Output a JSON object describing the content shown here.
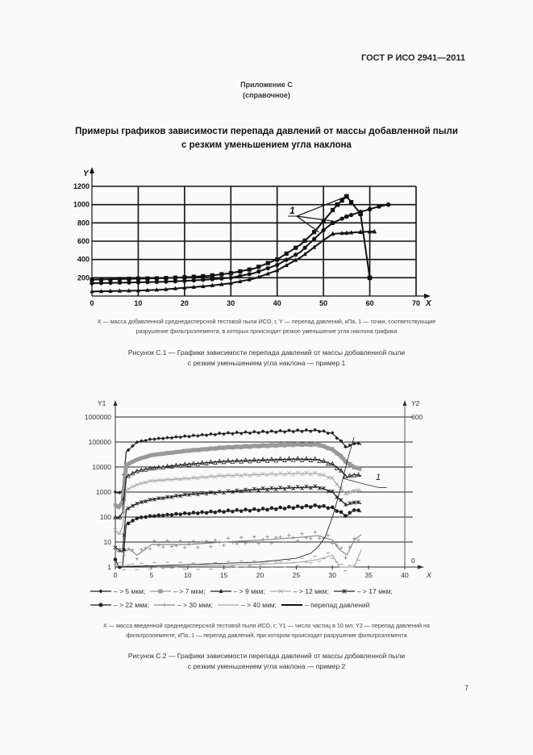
{
  "header": {
    "doc_code": "ГОСТ Р ИСО 2941—2011"
  },
  "appendix": {
    "title": "Приложение С",
    "subtitle": "(справочное)"
  },
  "main_title": {
    "line1": "Примеры графиков зависимости перепада давлений от массы добавленной пыли",
    "line2": "с резким уменьшением угла наклона"
  },
  "figure1": {
    "legend_line1": "X — масса добавленной среднедисперсной тестовой пыли ИСО, г, Y — перепад давлений, кПа, 1 — точки, соответствующие",
    "legend_line2": "разрушение фильтроэлемента, в которых происходит резкое уменьшение угла наклона графика",
    "caption_line1": "Рисунок С.1 — Графики зависимости перепада давлений от массы добавленной пыли",
    "caption_line2": "с резким уменьшением угла наклона — пример 1"
  },
  "figure2": {
    "legend_items": [
      {
        "label": "– > 5 мкм;",
        "marker": "diamond",
        "color": "#222222"
      },
      {
        "label": "– > 7 мкм;",
        "marker": "square",
        "color": "#999999"
      },
      {
        "label": "– > 9 мкм;",
        "marker": "triangle",
        "color": "#222222"
      },
      {
        "label": "– > 12 мкм;",
        "marker": "x",
        "color": "#aaaaaa"
      },
      {
        "label": "– > 17 мкм;",
        "marker": "star",
        "color": "#222222"
      },
      {
        "label": "– > 22 мкм;",
        "marker": "circle",
        "color": "#222222"
      },
      {
        "label": "– > 30 мкм;",
        "marker": "plus",
        "color": "#888888"
      },
      {
        "label": "– > 40 мкм;",
        "marker": "dash",
        "color": "#aaaaaa"
      },
      {
        "label": "– перепад давлений",
        "marker": "line",
        "color": "#111111"
      }
    ],
    "legend_line1": "X — масса введенной среднедисперсной тестовой пыли ИСО, г; Y1 — число частиц в 10 мл; Y2 — перепад давлений на",
    "legend_line2": "фильтроэлементе, кПа; 1 — перепад давлений, при котором происходит разрушение фильтроэлемента",
    "caption_line1": "Рисунок С.2 — Графики зависимости перепада давлений от массы добавленной пыли",
    "caption_line2": "с резким уменьшением угла наклона — пример 2"
  },
  "page_number": "7",
  "chart_data": [
    {
      "type": "line",
      "title": "Рисунок С.1",
      "xlabel": "X",
      "ylabel": "Y",
      "xlim": [
        0,
        70
      ],
      "ylim": [
        0,
        1200
      ],
      "x_ticks": [
        0,
        10,
        20,
        30,
        40,
        50,
        60,
        70
      ],
      "y_ticks": [
        200,
        400,
        600,
        800,
        1000,
        1200
      ],
      "grid": true,
      "annotation": "1",
      "series": [
        {
          "name": "square-marker curve",
          "marker": "square",
          "x": [
            0,
            5,
            10,
            15,
            20,
            25,
            30,
            35,
            40,
            45,
            48,
            50,
            53,
            55,
            58,
            60
          ],
          "y": [
            180,
            185,
            190,
            195,
            205,
            220,
            250,
            300,
            400,
            560,
            700,
            820,
            1000,
            1090,
            900,
            200
          ]
        },
        {
          "name": "circle-marker curve",
          "marker": "circle",
          "x": [
            0,
            5,
            10,
            15,
            20,
            25,
            30,
            35,
            40,
            45,
            50,
            52,
            55,
            58,
            60,
            62,
            64
          ],
          "y": [
            140,
            145,
            150,
            155,
            165,
            180,
            200,
            250,
            340,
            480,
            720,
            800,
            870,
            920,
            950,
            980,
            1000
          ]
        },
        {
          "name": "triangle-marker curve",
          "marker": "triangle",
          "x": [
            0,
            5,
            10,
            15,
            20,
            25,
            30,
            35,
            40,
            45,
            50,
            52,
            55,
            58,
            60,
            61
          ],
          "y": [
            50,
            55,
            60,
            70,
            90,
            110,
            140,
            190,
            280,
            420,
            610,
            680,
            690,
            700,
            705,
            705
          ]
        }
      ]
    },
    {
      "type": "line",
      "title": "Рисунок С.2",
      "xlabel": "X",
      "ylabel": "Y1",
      "y2label": "Y2",
      "xlim": [
        0,
        40
      ],
      "ylim": [
        1,
        1000000
      ],
      "yscale": "log",
      "y2lim": [
        0,
        600
      ],
      "x_ticks": [
        0,
        5,
        10,
        15,
        20,
        25,
        30,
        35,
        40
      ],
      "y_ticks": [
        1,
        10,
        100,
        1000,
        10000,
        100000,
        1000000
      ],
      "y2_ticks": [
        0,
        600
      ],
      "grid": true,
      "annotation": "1",
      "series": [
        {
          "name": "> 5 мкм",
          "x": [
            0,
            0.5,
            1,
            1.5,
            3,
            5,
            10,
            15,
            20,
            25,
            28,
            30,
            31,
            32,
            33,
            34
          ],
          "y": [
            1000,
            900,
            1200,
            40000,
            100000,
            130000,
            170000,
            220000,
            250000,
            280000,
            290000,
            220000,
            120000,
            60000,
            90000,
            80000
          ]
        },
        {
          "name": "> 7 мкм",
          "x": [
            0,
            0.5,
            1,
            1.5,
            3,
            5,
            10,
            15,
            20,
            25,
            28,
            30,
            31,
            32,
            33,
            34
          ],
          "y": [
            300,
            250,
            400,
            12000,
            20000,
            30000,
            45000,
            60000,
            70000,
            80000,
            80000,
            50000,
            30000,
            15000,
            10000,
            8000
          ]
        },
        {
          "name": "> 9 мкм",
          "x": [
            0,
            0.5,
            1,
            1.5,
            3,
            5,
            10,
            15,
            20,
            25,
            28,
            30,
            31,
            32,
            33,
            34
          ],
          "y": [
            100,
            90,
            150,
            4000,
            7000,
            9000,
            13000,
            17000,
            19000,
            21000,
            20000,
            13000,
            8000,
            4000,
            5000,
            4500
          ]
        },
        {
          "name": "> 12 мкм",
          "x": [
            0,
            0.5,
            1,
            1.5,
            3,
            5,
            10,
            15,
            20,
            25,
            28,
            30,
            31,
            32,
            33,
            34
          ],
          "y": [
            30,
            20,
            40,
            1200,
            2000,
            2800,
            3500,
            4500,
            5000,
            5500,
            5500,
            3500,
            1500,
            800,
            1200,
            1100
          ]
        },
        {
          "name": "> 17 мкм",
          "x": [
            0,
            0.5,
            1,
            1.5,
            3,
            5,
            10,
            15,
            20,
            25,
            28,
            30,
            31,
            32,
            33,
            34
          ],
          "y": [
            6,
            5,
            4,
            200,
            350,
            500,
            800,
            1000,
            1300,
            1500,
            1600,
            1000,
            500,
            300,
            400,
            350
          ]
        },
        {
          "name": "> 22 мкм",
          "x": [
            0,
            0.5,
            1,
            1.5,
            3,
            5,
            10,
            15,
            20,
            25,
            28,
            30,
            31,
            32,
            33,
            34
          ],
          "y": [
            2,
            1,
            1,
            50,
            90,
            110,
            140,
            170,
            200,
            250,
            280,
            230,
            160,
            110,
            200,
            160
          ]
        },
        {
          "name": "> 30 мкм",
          "x": [
            0,
            0.5,
            1,
            2,
            3,
            5,
            10,
            15,
            20,
            25,
            28,
            30,
            31,
            32,
            33,
            34
          ],
          "y": [
            5,
            4,
            4,
            5,
            3,
            8,
            8,
            10,
            12,
            15,
            18,
            12,
            5,
            3,
            12,
            20
          ]
        },
        {
          "name": "> 40 мкм",
          "x": [
            0,
            1,
            5,
            10,
            15,
            20,
            25,
            28,
            30,
            31,
            32,
            33,
            34
          ],
          "y": [
            1.2,
            1.1,
            1.1,
            1.1,
            1.2,
            1.3,
            1.5,
            2.0,
            3,
            1,
            1,
            1,
            5
          ]
        },
        {
          "name": "перепад давлений",
          "axis": "y2",
          "x": [
            0,
            5,
            10,
            15,
            20,
            25,
            27,
            28,
            29,
            30,
            31,
            32,
            33
          ],
          "y": [
            0,
            5,
            10,
            15,
            20,
            35,
            55,
            80,
            120,
            200,
            300,
            420,
            520
          ]
        }
      ]
    }
  ]
}
